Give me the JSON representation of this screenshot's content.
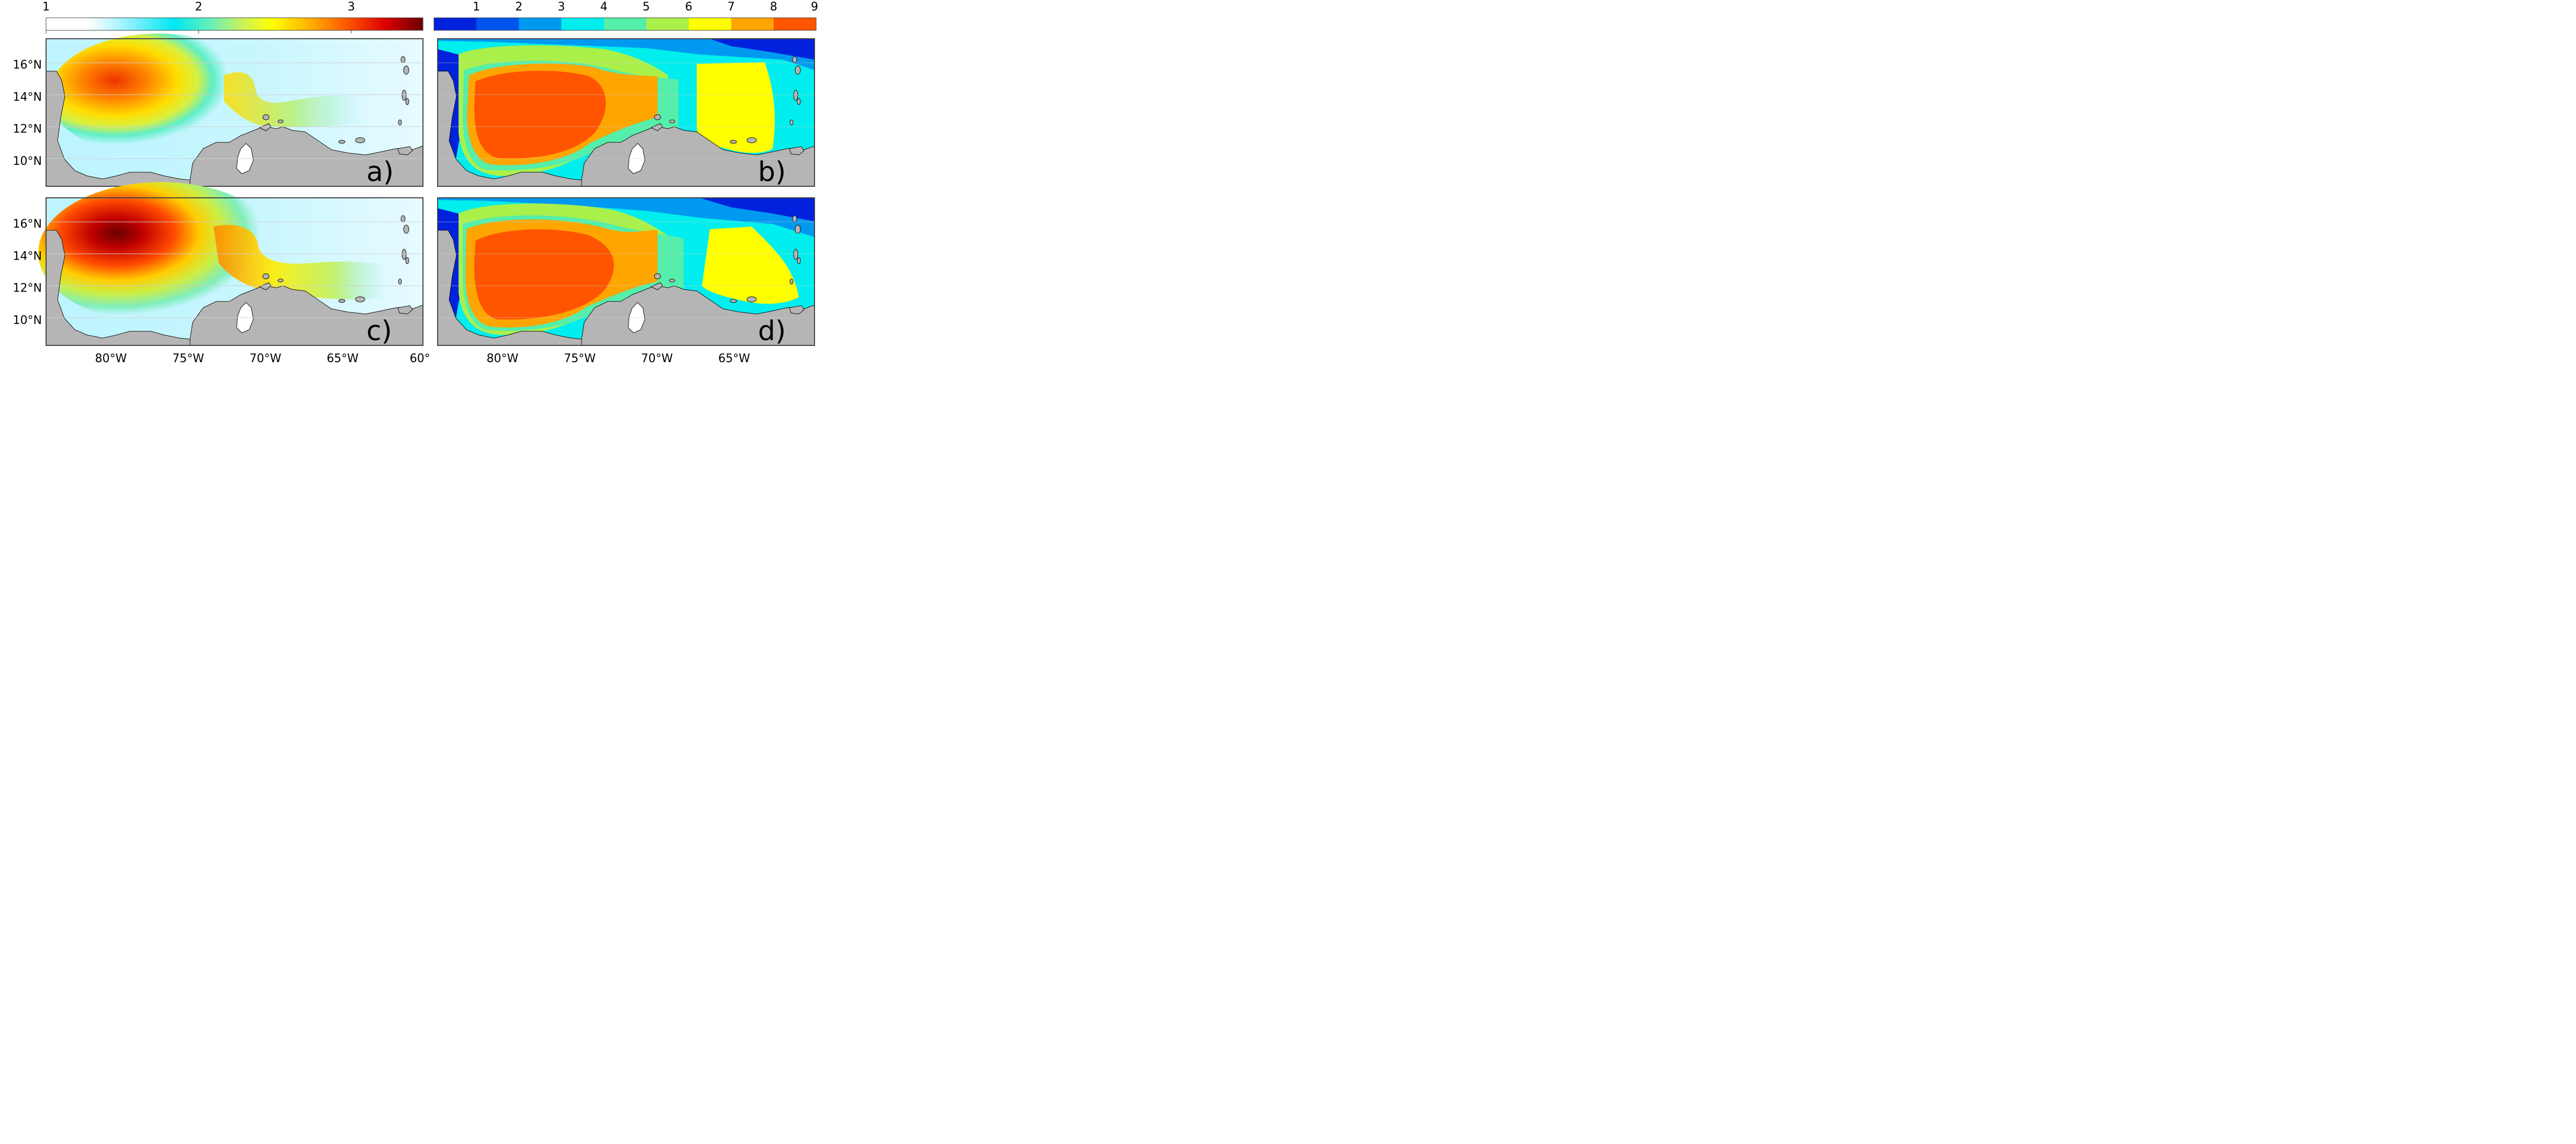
{
  "colorbar_left": {
    "ticks": [
      "1",
      "2",
      "3"
    ],
    "ticks_value": [
      1,
      2,
      3
    ],
    "range": [
      1,
      3.47
    ],
    "colors": [
      "#ffffff",
      "#e8fbff",
      "#9cf0ff",
      "#00e8f0",
      "#60f0b8",
      "#c8f060",
      "#ffff00",
      "#ffcc00",
      "#ff8c00",
      "#ff4400",
      "#e00000",
      "#b00000",
      "#6a0000"
    ]
  },
  "colorbar_right": {
    "ticks": [
      "1",
      "2",
      "3",
      "4",
      "5",
      "6",
      "7",
      "8",
      "9"
    ],
    "classes": [
      "#0022dd",
      "#0055ee",
      "#0099f0",
      "#00eeee",
      "#55eeaa",
      "#aaf04a",
      "#ffff00",
      "#ffa500",
      "#ff5500"
    ]
  },
  "panels": [
    {
      "label": "a)",
      "field": "continuous"
    },
    {
      "label": "b)",
      "field": "classes"
    },
    {
      "label": "c)",
      "field": "continuous"
    },
    {
      "label": "d)",
      "field": "classes"
    }
  ],
  "axes": {
    "lat_ticks": [
      "16°N",
      "14°N",
      "12°N",
      "10°N"
    ],
    "lat_values": [
      16,
      14,
      12,
      10
    ],
    "lon_ticks_left": [
      "80°W",
      "75°W",
      "70°W",
      "65°W",
      "60°"
    ],
    "lon_values_left": [
      -80,
      -75,
      -70,
      -65,
      -60
    ],
    "lon_ticks_right": [
      "80°W",
      "75°W",
      "70°W",
      "65°W"
    ],
    "lon_values_right": [
      -80,
      -75,
      -70,
      -65
    ],
    "lon_range": [
      -84.2,
      -59.8
    ],
    "lat_range": [
      8.4,
      17.6
    ]
  },
  "colors": {
    "land": "#b5b5b5",
    "frame": "#444444",
    "grid": "#cfcfcf"
  }
}
